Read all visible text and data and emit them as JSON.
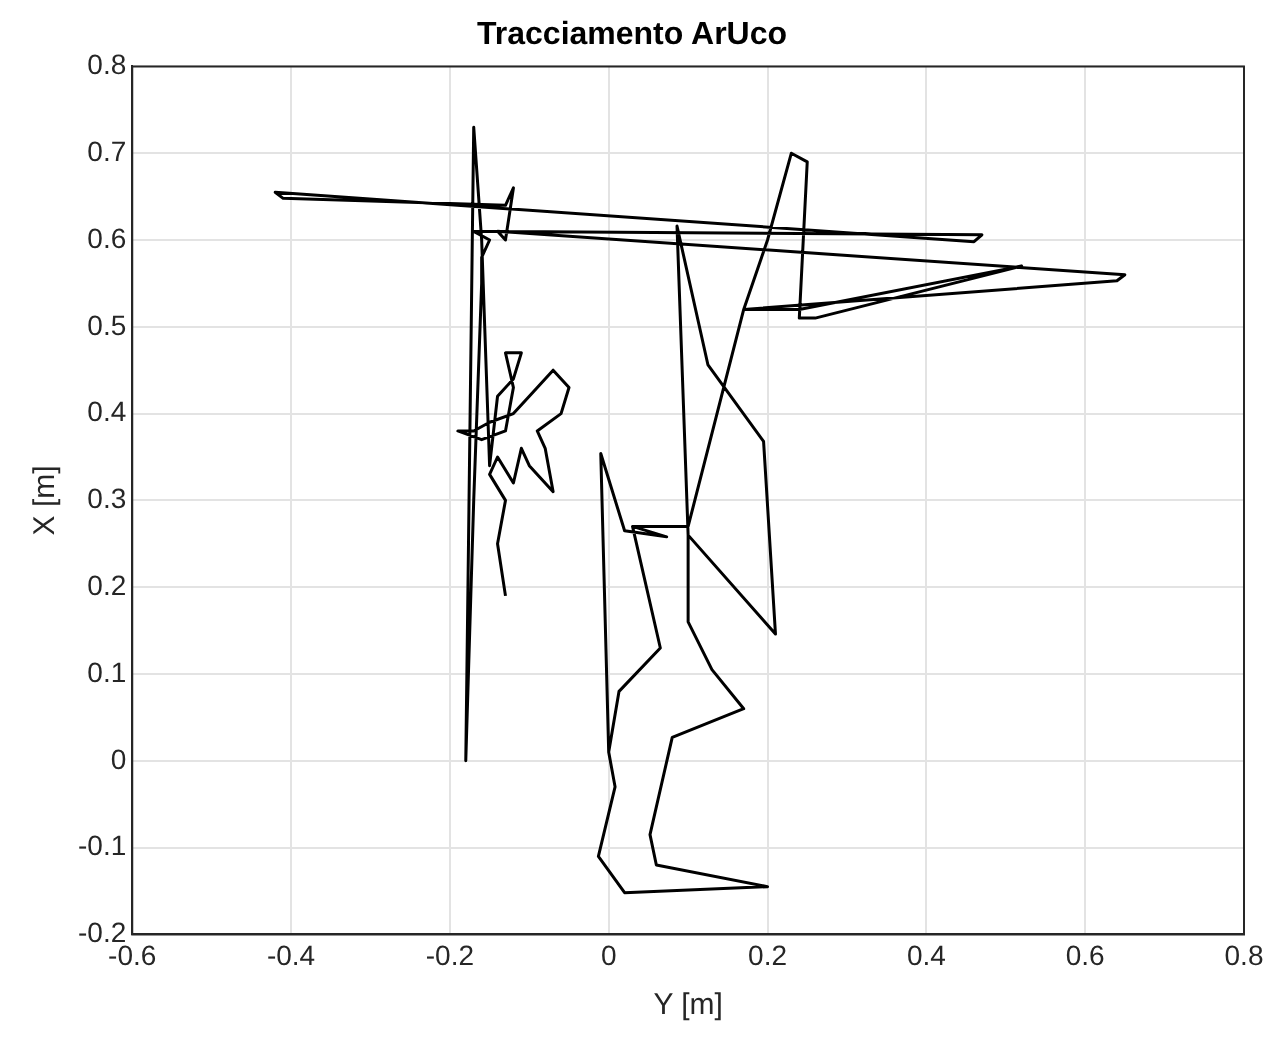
{
  "chart_data": {
    "type": "line",
    "title": "Tracciamento ArUco",
    "xlabel": "Y [m]",
    "ylabel": "X [m]",
    "x": [
      -0.13,
      -0.14,
      -0.13,
      -0.15,
      -0.14,
      -0.12,
      -0.11,
      -0.1,
      -0.07,
      -0.08,
      -0.09,
      -0.06,
      -0.05,
      -0.07,
      -0.1,
      -0.12,
      -0.15,
      -0.17,
      -0.19,
      -0.16,
      -0.13,
      -0.12,
      -0.13,
      -0.11,
      -0.12,
      -0.14,
      -0.15,
      -0.16,
      -0.17,
      -0.18,
      -0.17,
      -0.16,
      -0.16,
      -0.15,
      -0.17,
      0.47,
      0.46,
      -0.42,
      -0.41,
      -0.13,
      -0.12,
      -0.13,
      -0.14,
      0.65,
      0.64,
      0.17,
      0.2,
      0.23,
      0.25,
      0.24,
      0.26,
      0.52,
      0.24,
      0.17,
      0.1,
      0.03,
      0.065,
      0.013,
      0,
      -0.01,
      0.02,
      0.073,
      0.03,
      0.03,
      0.065,
      0.013,
      0,
      0.008,
      -0.013,
      0.02,
      0.2,
      0.06,
      0.052,
      0.08,
      0.17,
      0.13,
      0.1,
      0.1,
      0.086,
      0.125,
      0.195,
      0.21,
      0.1,
      0.086
    ],
    "values": [
      0.19,
      0.25,
      0.3,
      0.33,
      0.35,
      0.32,
      0.36,
      0.34,
      0.31,
      0.36,
      0.38,
      0.4,
      0.43,
      0.45,
      0.42,
      0.4,
      0.39,
      0.38,
      0.38,
      0.37,
      0.38,
      0.43,
      0.47,
      0.47,
      0.44,
      0.42,
      0.34,
      0.6,
      0.73,
      0,
      0.3,
      0.55,
      0.58,
      0.6,
      0.61,
      0.606,
      0.598,
      0.655,
      0.648,
      0.64,
      0.66,
      0.6,
      0.61,
      0.56,
      0.553,
      0.52,
      0.6,
      0.7,
      0.69,
      0.51,
      0.51,
      0.57,
      0.52,
      0.52,
      0.27,
      0.27,
      0.13,
      0.08,
      0.01,
      0.354,
      0.265,
      0.258,
      0.27,
      0.27,
      0.13,
      0.08,
      0.01,
      -0.03,
      -0.11,
      -0.152,
      -0.145,
      -0.12,
      -0.085,
      0.027,
      0.06,
      0.105,
      0.16,
      0.26,
      0.616,
      0.456,
      0.368,
      0.146,
      0.26,
      0.616
    ],
    "color": "#000000",
    "marker": "none",
    "line_style": "solid",
    "xlim": [
      -0.6,
      0.8
    ],
    "xticks": [
      -0.6,
      -0.4,
      -0.2,
      0,
      0.2,
      0.4,
      0.6,
      0.8
    ],
    "ylim": [
      -0.2,
      0.8
    ],
    "yticks": [
      -0.2,
      -0.1,
      0,
      0.1,
      0.2,
      0.3,
      0.4,
      0.5,
      0.6,
      0.7,
      0.8
    ],
    "grid": true
  }
}
